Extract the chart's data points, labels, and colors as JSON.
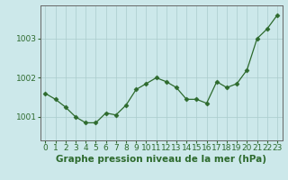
{
  "x": [
    0,
    1,
    2,
    3,
    4,
    5,
    6,
    7,
    8,
    9,
    10,
    11,
    12,
    13,
    14,
    15,
    16,
    17,
    18,
    19,
    20,
    21,
    22,
    23
  ],
  "y": [
    1001.6,
    1001.45,
    1001.25,
    1001.0,
    1000.85,
    1000.85,
    1001.1,
    1001.05,
    1001.3,
    1001.7,
    1001.85,
    1002.0,
    1001.9,
    1001.75,
    1001.45,
    1001.45,
    1001.35,
    1001.9,
    1001.75,
    1001.85,
    1002.2,
    1003.0,
    1003.25,
    1003.6
  ],
  "line_color": "#2d6a2d",
  "marker": "D",
  "marker_size": 2.5,
  "bg_color": "#cce8ea",
  "grid_color": "#aacccc",
  "axis_label_color": "#2d6a2d",
  "tick_color": "#2d6a2d",
  "spine_color": "#666666",
  "xlabel": "Graphe pression niveau de la mer (hPa)",
  "yticks": [
    1001,
    1002,
    1003
  ],
  "ylim": [
    1000.4,
    1003.85
  ],
  "xlim": [
    -0.5,
    23.5
  ],
  "xlabel_fontsize": 7.5,
  "tick_fontsize": 6.5
}
